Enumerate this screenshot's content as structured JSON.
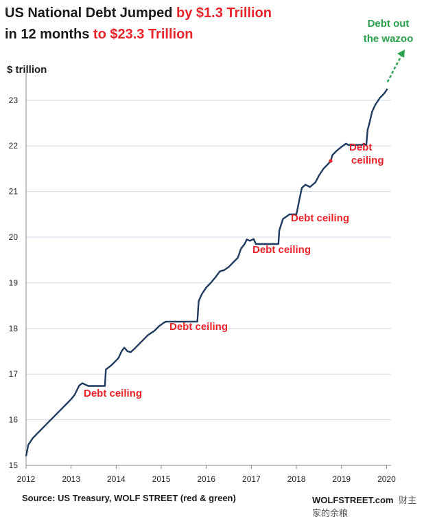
{
  "chart_data": {
    "type": "line",
    "title_parts": [
      {
        "text": "US National Debt Jumped ",
        "color": "#1a1a1a"
      },
      {
        "text": "by $1.3 Trillion",
        "color": "#e8232a"
      },
      {
        "text": "in 12 months ",
        "color": "#1a1a1a"
      },
      {
        "text": "to $23.3 Trillion",
        "color": "#e8232a"
      }
    ],
    "ylabel": "$ trillion",
    "xlabel": "",
    "ylim": [
      15,
      23.6
    ],
    "xlim": [
      2012,
      2020.1
    ],
    "yticks": [
      15,
      16,
      17,
      18,
      19,
      20,
      21,
      22,
      23
    ],
    "xticks": [
      2012,
      2013,
      2014,
      2015,
      2016,
      2017,
      2018,
      2019,
      2020
    ],
    "grid": "horizontal",
    "line_color": "#1f3a5f",
    "accent_red": "#e8232a",
    "accent_green": "#2aa14a",
    "series": [
      {
        "name": "US National Debt",
        "points": [
          [
            2012.0,
            15.2
          ],
          [
            2012.05,
            15.45
          ],
          [
            2012.15,
            15.6
          ],
          [
            2012.3,
            15.75
          ],
          [
            2012.45,
            15.9
          ],
          [
            2012.6,
            16.05
          ],
          [
            2012.75,
            16.2
          ],
          [
            2012.9,
            16.35
          ],
          [
            2013.0,
            16.45
          ],
          [
            2013.08,
            16.55
          ],
          [
            2013.18,
            16.75
          ],
          [
            2013.25,
            16.8
          ],
          [
            2013.38,
            16.74
          ],
          [
            2013.75,
            16.74
          ],
          [
            2013.77,
            17.1
          ],
          [
            2013.9,
            17.2
          ],
          [
            2014.0,
            17.3
          ],
          [
            2014.05,
            17.35
          ],
          [
            2014.12,
            17.5
          ],
          [
            2014.18,
            17.58
          ],
          [
            2014.25,
            17.5
          ],
          [
            2014.32,
            17.48
          ],
          [
            2014.4,
            17.55
          ],
          [
            2014.55,
            17.7
          ],
          [
            2014.7,
            17.85
          ],
          [
            2014.85,
            17.95
          ],
          [
            2014.95,
            18.05
          ],
          [
            2015.05,
            18.12
          ],
          [
            2015.1,
            18.15
          ],
          [
            2015.2,
            18.15
          ],
          [
            2015.75,
            18.15
          ],
          [
            2015.8,
            18.15
          ],
          [
            2015.83,
            18.6
          ],
          [
            2015.9,
            18.75
          ],
          [
            2016.0,
            18.9
          ],
          [
            2016.1,
            19.0
          ],
          [
            2016.2,
            19.12
          ],
          [
            2016.3,
            19.25
          ],
          [
            2016.4,
            19.28
          ],
          [
            2016.5,
            19.35
          ],
          [
            2016.6,
            19.45
          ],
          [
            2016.7,
            19.55
          ],
          [
            2016.77,
            19.75
          ],
          [
            2016.85,
            19.85
          ],
          [
            2016.9,
            19.95
          ],
          [
            2016.97,
            19.92
          ],
          [
            2017.05,
            19.96
          ],
          [
            2017.1,
            19.85
          ],
          [
            2017.6,
            19.85
          ],
          [
            2017.62,
            20.15
          ],
          [
            2017.7,
            20.4
          ],
          [
            2017.85,
            20.5
          ],
          [
            2017.9,
            20.5
          ],
          [
            2018.0,
            20.5
          ],
          [
            2018.07,
            20.85
          ],
          [
            2018.12,
            21.08
          ],
          [
            2018.2,
            21.15
          ],
          [
            2018.3,
            21.1
          ],
          [
            2018.42,
            21.2
          ],
          [
            2018.5,
            21.35
          ],
          [
            2018.6,
            21.5
          ],
          [
            2018.7,
            21.6
          ],
          [
            2018.76,
            21.67
          ],
          [
            2018.8,
            21.8
          ],
          [
            2018.9,
            21.9
          ],
          [
            2019.0,
            21.98
          ],
          [
            2019.1,
            22.05
          ],
          [
            2019.15,
            22.02
          ],
          [
            2019.45,
            22.02
          ],
          [
            2019.5,
            22.05
          ],
          [
            2019.55,
            22.01
          ],
          [
            2019.58,
            22.35
          ],
          [
            2019.62,
            22.5
          ],
          [
            2019.68,
            22.75
          ],
          [
            2019.75,
            22.9
          ],
          [
            2019.85,
            23.05
          ],
          [
            2019.95,
            23.15
          ],
          [
            2020.02,
            23.25
          ]
        ]
      }
    ],
    "annotations": [
      {
        "text": "Debt ceiling",
        "color": "#e8232a"
      },
      {
        "text": "Debt ceiling",
        "color": "#e8232a"
      },
      {
        "text": "Debt ceiling",
        "color": "#e8232a"
      },
      {
        "text": "Debt ceiling",
        "color": "#e8232a"
      },
      {
        "text": "Debt\nceiling",
        "color": "#e8232a"
      },
      {
        "text": "Debt out\nthe wazoo",
        "color": "#2aa14a"
      }
    ],
    "source": "Source: US Treasury, WOLF STREET (red & green)",
    "brand": "WOLFSTREET.com",
    "watermark": "财主家的余粮"
  }
}
